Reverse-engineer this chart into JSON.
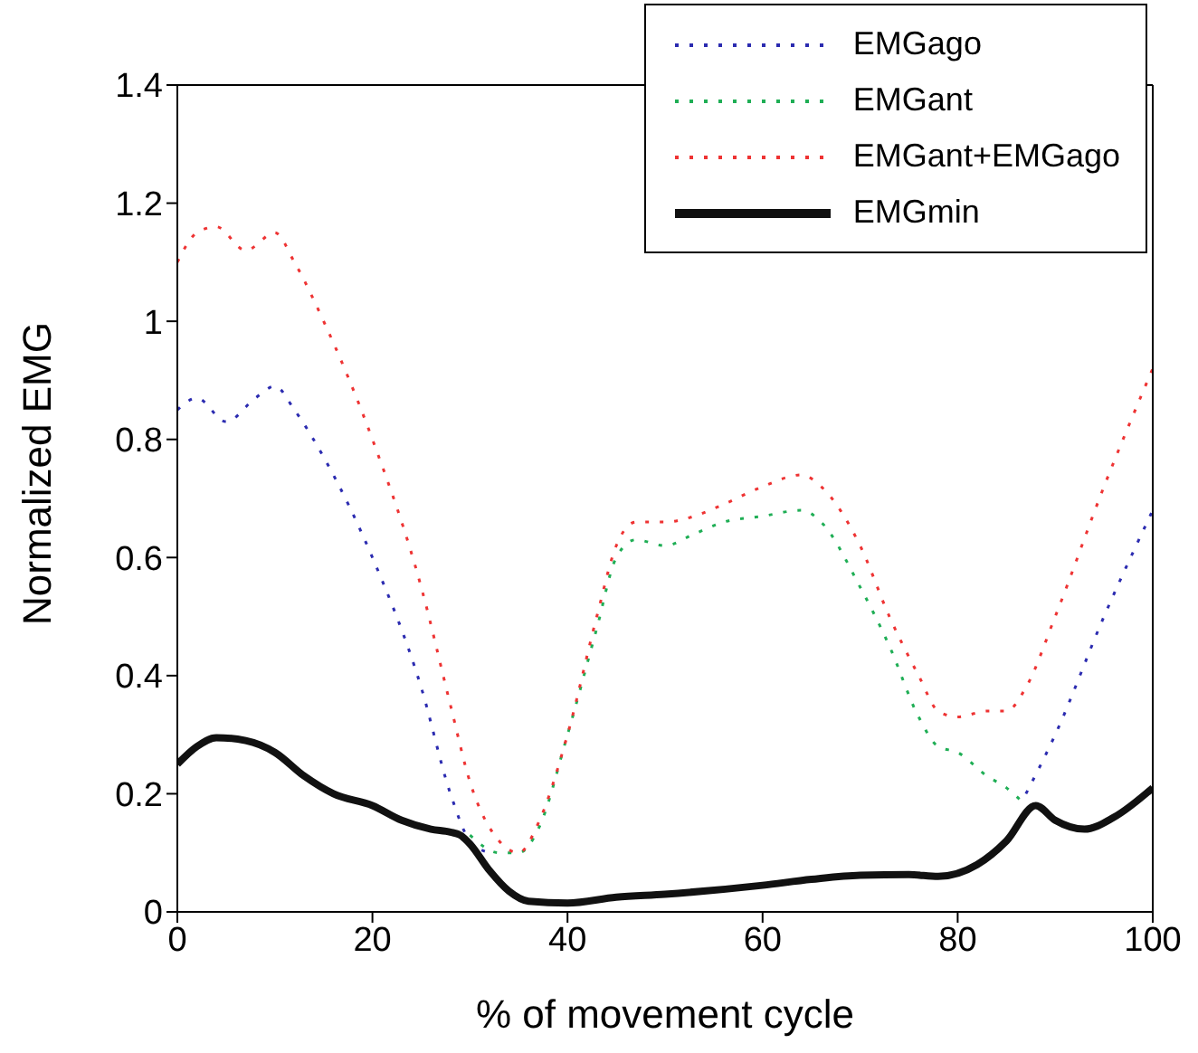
{
  "chart_data": {
    "type": "line",
    "xlabel": "% of movement cycle",
    "ylabel": "Normalized EMG",
    "xlim": [
      0,
      100
    ],
    "xticks": [
      0,
      20,
      40,
      60,
      80,
      100
    ],
    "ylim": [
      0,
      1.4
    ],
    "yticks": [
      0,
      0.2,
      0.4,
      0.6,
      0.8,
      1,
      1.2,
      1.4
    ],
    "legend": "top right",
    "grid": false,
    "marker": "none",
    "series": [
      {
        "name": "EMGago",
        "color": "#2b2bb0",
        "line_style": "dotted",
        "x": [
          0,
          2,
          5,
          8,
          10,
          12,
          15,
          20,
          25,
          28,
          30,
          32,
          60,
          87,
          90,
          95,
          100
        ],
        "values": [
          0.85,
          0.87,
          0.83,
          0.87,
          0.89,
          0.85,
          0.77,
          0.6,
          0.38,
          0.2,
          0.12,
          0.1,
          null,
          0.2,
          0.3,
          0.5,
          0.68
        ]
      },
      {
        "name": "EMGant",
        "color": "#1fae55",
        "line_style": "dotted",
        "x": [
          30,
          33,
          35,
          37,
          40,
          43,
          45,
          47,
          50,
          53,
          56,
          60,
          64,
          66,
          70,
          73,
          76,
          78,
          80,
          83,
          85,
          87
        ],
        "values": [
          0.13,
          0.1,
          0.1,
          0.14,
          0.3,
          0.48,
          0.6,
          0.63,
          0.62,
          0.64,
          0.66,
          0.67,
          0.68,
          0.66,
          0.55,
          0.45,
          0.33,
          0.28,
          0.27,
          0.23,
          0.21,
          0.18
        ]
      },
      {
        "name": "EMGant+EMGago",
        "color": "#ee3333",
        "line_style": "dotted",
        "x": [
          0,
          2,
          4,
          7,
          10,
          12,
          15,
          20,
          25,
          28,
          30,
          33,
          35,
          37,
          40,
          43,
          45,
          47,
          50,
          53,
          56,
          60,
          64,
          66,
          70,
          73,
          76,
          78,
          80,
          83,
          85,
          87,
          90,
          95,
          100
        ],
        "values": [
          1.1,
          1.15,
          1.16,
          1.12,
          1.15,
          1.1,
          1.0,
          0.8,
          0.55,
          0.35,
          0.22,
          0.12,
          0.1,
          0.15,
          0.3,
          0.5,
          0.62,
          0.66,
          0.66,
          0.67,
          0.69,
          0.72,
          0.74,
          0.72,
          0.62,
          0.5,
          0.4,
          0.34,
          0.33,
          0.34,
          0.34,
          0.38,
          0.5,
          0.72,
          0.92
        ]
      },
      {
        "name": "EMGmin",
        "color": "#111111",
        "line_style": "solid",
        "x": [
          0,
          2,
          4,
          7,
          10,
          13,
          16,
          20,
          23,
          26,
          28,
          29,
          30,
          32,
          34,
          36,
          40,
          45,
          50,
          60,
          65,
          70,
          75,
          78,
          82,
          85,
          88,
          90,
          93,
          96,
          100
        ],
        "values": [
          0.25,
          0.28,
          0.295,
          0.29,
          0.27,
          0.23,
          0.2,
          0.18,
          0.155,
          0.14,
          0.135,
          0.13,
          0.115,
          0.07,
          0.035,
          0.018,
          0.015,
          0.025,
          0.03,
          0.045,
          0.055,
          0.062,
          0.063,
          0.06,
          0.08,
          0.12,
          0.18,
          0.155,
          0.14,
          0.16,
          0.21
        ]
      }
    ]
  }
}
